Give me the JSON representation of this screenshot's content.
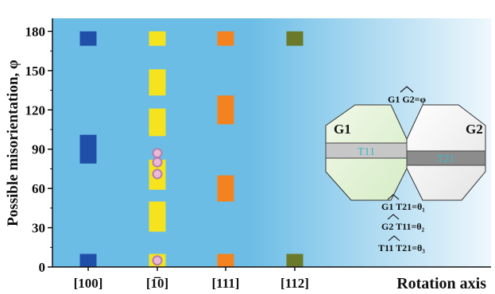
{
  "chart_data": {
    "type": "scatter",
    "xlabel": "Rotation axis",
    "ylabel": "Possible misorientation, φ",
    "ylim": [
      0,
      190
    ],
    "yticks": [
      "0",
      "30",
      "60",
      "90",
      "120",
      "150",
      "180"
    ],
    "ytick_values": [
      0,
      30,
      60,
      90,
      120,
      150,
      180
    ],
    "categories": [
      {
        "label": "[100]",
        "color": "#1f4fa8"
      },
      {
        "label": "[1̅0]",
        "color": "#f5e31e"
      },
      {
        "label": "[111]",
        "color": "#f4821f"
      },
      {
        "label": "[112]",
        "color": "#6b7a2a"
      }
    ],
    "bars": [
      {
        "category": 0,
        "y0": 0,
        "y1": 10
      },
      {
        "category": 0,
        "y0": 79,
        "y1": 101
      },
      {
        "category": 0,
        "y0": 169,
        "y1": 180
      },
      {
        "category": 1,
        "y0": 0,
        "y1": 10
      },
      {
        "category": 1,
        "y0": 27,
        "y1": 50
      },
      {
        "category": 1,
        "y0": 59,
        "y1": 82
      },
      {
        "category": 1,
        "y0": 100,
        "y1": 121
      },
      {
        "category": 1,
        "y0": 131,
        "y1": 151
      },
      {
        "category": 1,
        "y0": 169,
        "y1": 180
      },
      {
        "category": 2,
        "y0": 0,
        "y1": 10
      },
      {
        "category": 2,
        "y0": 50,
        "y1": 70
      },
      {
        "category": 2,
        "y0": 109,
        "y1": 131
      },
      {
        "category": 2,
        "y0": 169,
        "y1": 180
      },
      {
        "category": 3,
        "y0": 0,
        "y1": 10
      },
      {
        "category": 3,
        "y0": 169,
        "y1": 180
      }
    ],
    "points": [
      {
        "category": 1,
        "y": 5
      },
      {
        "category": 1,
        "y": 71
      },
      {
        "category": 1,
        "y": 80
      },
      {
        "category": 1,
        "y": 87
      }
    ],
    "colors": {
      "bg_left": "#6cbde6",
      "bg_right": "#eef7fc",
      "point_fill": "#e9b9d6",
      "point_stroke": "#b27fb0"
    }
  },
  "inset": {
    "grain_left": "G1",
    "grain_right": "G2",
    "twin_left": "T11",
    "twin_right": "T21",
    "top_formula": "G1 G2=φ",
    "formulas": [
      "G1 T21=θ₁",
      "G2 T11=θ₂",
      "T11 T21=θ₃"
    ]
  }
}
